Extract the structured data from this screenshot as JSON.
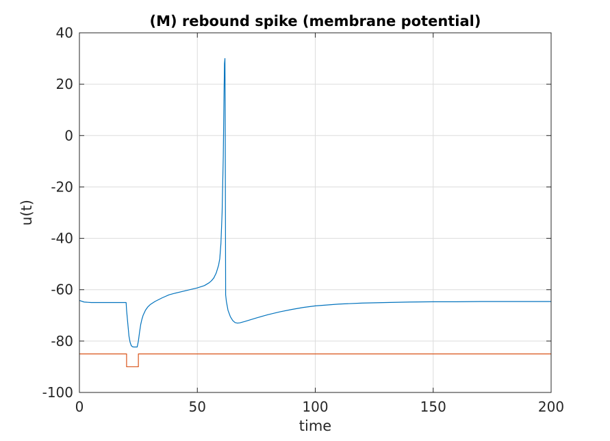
{
  "chart_data": {
    "type": "line",
    "title": "(M) rebound spike (membrane potential)",
    "xlabel": "time",
    "ylabel": "u(t)",
    "xlim": [
      0,
      200
    ],
    "ylim": [
      -100,
      40
    ],
    "xticks": [
      0,
      50,
      100,
      150,
      200
    ],
    "yticks": [
      -100,
      -80,
      -60,
      -40,
      -20,
      0,
      20,
      40
    ],
    "x_tick_labels": [
      "0",
      "50",
      "100",
      "150",
      "200"
    ],
    "y_tick_labels": [
      "-100",
      "-80",
      "-60",
      "-40",
      "-20",
      "0",
      "20",
      "40"
    ],
    "grid": true,
    "series": [
      {
        "color": "#0072BD",
        "x": [
          0,
          2,
          5,
          10,
          15,
          19.8,
          20,
          20.5,
          21,
          21.5,
          22,
          22.5,
          23,
          24.5,
          25,
          25.5,
          26,
          26.5,
          27,
          28,
          29,
          30,
          32,
          35,
          38,
          40,
          45,
          50,
          53,
          55,
          56,
          57,
          58,
          59,
          59.5,
          60,
          60.5,
          61,
          61.3,
          61.5,
          61.7,
          61.8,
          62,
          62.3,
          62.7,
          63,
          64,
          65,
          66,
          67,
          68,
          70,
          75,
          80,
          85,
          90,
          95,
          100,
          110,
          120,
          130,
          140,
          150,
          160,
          170,
          180,
          190,
          200
        ],
        "y": [
          -64.2,
          -64.8,
          -65,
          -65,
          -65,
          -65,
          -68,
          -73,
          -78,
          -80.5,
          -81.8,
          -82.2,
          -82.3,
          -82.3,
          -80,
          -76.5,
          -73.5,
          -71.5,
          -70,
          -68,
          -66.7,
          -65.8,
          -64.6,
          -63.2,
          -62,
          -61.5,
          -60.4,
          -59.3,
          -58.4,
          -57.3,
          -56.5,
          -55.4,
          -53.5,
          -50.5,
          -48,
          -42,
          -30,
          -8,
          15,
          28,
          30,
          12,
          -62,
          -64.5,
          -66.5,
          -68,
          -70.5,
          -72,
          -72.8,
          -73,
          -72.9,
          -72.4,
          -71,
          -69.7,
          -68.6,
          -67.7,
          -66.9,
          -66.3,
          -65.6,
          -65.2,
          -65,
          -64.8,
          -64.7,
          -64.7,
          -64.6,
          -64.6,
          -64.6,
          -64.6
        ]
      },
      {
        "color": "#D95319",
        "x": [
          0,
          20,
          20,
          25,
          25,
          200
        ],
        "y": [
          -85,
          -85,
          -90,
          -90,
          -85,
          -85
        ]
      }
    ]
  }
}
